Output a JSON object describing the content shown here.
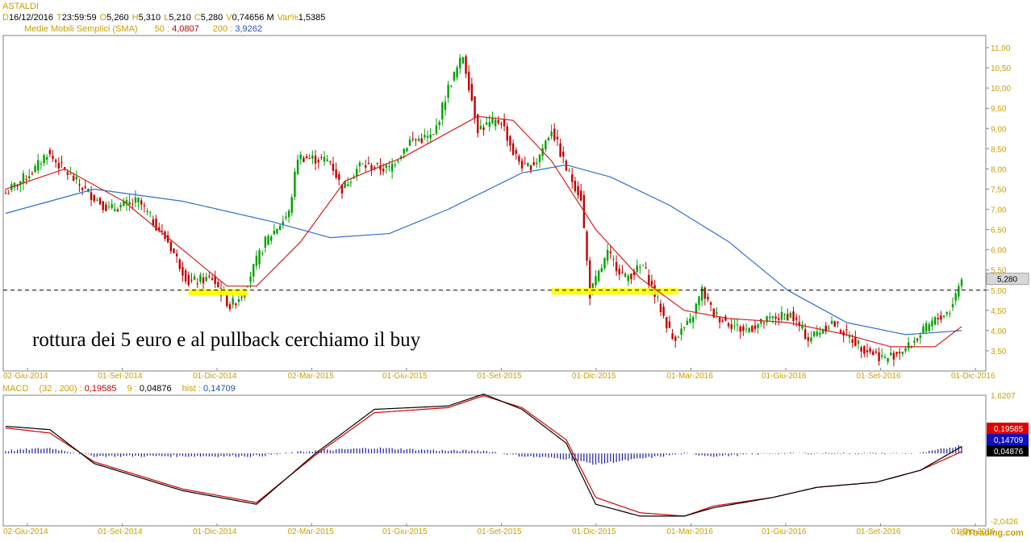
{
  "header": {
    "ticker": "ASTALDI",
    "line1": [
      {
        "k": "D",
        "v": "16/12/2016"
      },
      {
        "k": "T",
        "v": "23:59:59"
      },
      {
        "k": "O",
        "v": "5,260"
      },
      {
        "k": "H",
        "v": "5,310"
      },
      {
        "k": "L",
        "v": "5,210"
      },
      {
        "k": "C",
        "v": "5,280"
      },
      {
        "k": "V",
        "v": "0,74656 M"
      },
      {
        "k": "Var%",
        "v": "1,5385"
      }
    ],
    "sma_label": "Medie Mobili Semplici (SMA)",
    "sma50_key": "50 :",
    "sma50_value": "4,0807",
    "sma200_key": "200 :",
    "sma200_value": "3,9262"
  },
  "macd_header": {
    "label": "MACD",
    "params": "(32 , 200) :",
    "macd_value": "0,19585",
    "signal_key": "9 :",
    "signal_value": "0,04876",
    "hist_key": "hist :",
    "hist_value": "0,14709"
  },
  "watermark": "©ITtrading.com",
  "colors": {
    "candle_up": "#00a000",
    "candle_down": "#c00000",
    "sma50": "#d42020",
    "sma200": "#3070c8",
    "macd_line": "#000000",
    "signal_line": "#d00000",
    "hist_bar": "#1a1aa0",
    "axis_text": "#c8a000",
    "support_band": "#ffff00"
  },
  "chart_data": [
    {
      "type": "candlestick",
      "title": "ASTALDI",
      "ylim": [
        3.0,
        11.3
      ],
      "ytick_labels": [
        "11,00",
        "10,50",
        "10,00",
        "9,50",
        "9,00",
        "8,50",
        "8,00",
        "7,50",
        "7,00",
        "6,50",
        "6,00",
        "5,50",
        "5,00",
        "4,50",
        "4,00",
        "3,50"
      ],
      "ytick_values": [
        11.0,
        10.5,
        10.0,
        9.5,
        9.0,
        8.5,
        8.0,
        7.5,
        7.0,
        6.5,
        6.0,
        5.5,
        5.0,
        4.5,
        4.0,
        3.5
      ],
      "xtick_labels": [
        "02-Giu-2014",
        "01-Set-2014",
        "01-Dic-2014",
        "02-Mar-2015",
        "01-Giu-2015",
        "01-Set-2015",
        "01-Dic-2015",
        "01-Mar-2016",
        "01-Giu-2016",
        "01-Set-2016",
        "01-Dic-2016"
      ],
      "price_path": [
        [
          0,
          7.4
        ],
        [
          10,
          8.0
        ],
        [
          14,
          8.4
        ],
        [
          25,
          7.6
        ],
        [
          35,
          7.0
        ],
        [
          45,
          7.2
        ],
        [
          55,
          6.2
        ],
        [
          62,
          5.2
        ],
        [
          70,
          5.3
        ],
        [
          76,
          4.6
        ],
        [
          80,
          4.9
        ],
        [
          88,
          6.2
        ],
        [
          96,
          6.9
        ],
        [
          99,
          8.3
        ],
        [
          110,
          8.2
        ],
        [
          114,
          7.5
        ],
        [
          120,
          8.1
        ],
        [
          130,
          8.0
        ],
        [
          137,
          8.7
        ],
        [
          145,
          8.8
        ],
        [
          150,
          10.0
        ],
        [
          155,
          10.8
        ],
        [
          160,
          9.0
        ],
        [
          168,
          9.2
        ],
        [
          172,
          8.4
        ],
        [
          176,
          8.0
        ],
        [
          180,
          8.2
        ],
        [
          185,
          9.0
        ],
        [
          190,
          8.0
        ],
        [
          195,
          7.3
        ],
        [
          198,
          4.9
        ],
        [
          204,
          5.9
        ],
        [
          210,
          5.3
        ],
        [
          216,
          5.6
        ],
        [
          220,
          4.9
        ],
        [
          226,
          3.8
        ],
        [
          232,
          4.2
        ],
        [
          236,
          5.0
        ],
        [
          240,
          4.4
        ],
        [
          250,
          4.0
        ],
        [
          260,
          4.3
        ],
        [
          266,
          4.4
        ],
        [
          272,
          3.8
        ],
        [
          280,
          4.2
        ],
        [
          290,
          3.6
        ],
        [
          298,
          3.3
        ],
        [
          306,
          3.6
        ],
        [
          314,
          4.2
        ],
        [
          320,
          4.5
        ],
        [
          324,
          5.3
        ]
      ],
      "sma50": [
        [
          0,
          7.5
        ],
        [
          20,
          8.0
        ],
        [
          40,
          7.2
        ],
        [
          60,
          6.0
        ],
        [
          75,
          5.1
        ],
        [
          85,
          5.1
        ],
        [
          100,
          6.2
        ],
        [
          115,
          7.7
        ],
        [
          135,
          8.3
        ],
        [
          150,
          8.9
        ],
        [
          160,
          9.3
        ],
        [
          172,
          9.2
        ],
        [
          185,
          8.2
        ],
        [
          200,
          6.5
        ],
        [
          215,
          5.3
        ],
        [
          230,
          4.5
        ],
        [
          245,
          4.3
        ],
        [
          265,
          4.2
        ],
        [
          285,
          3.9
        ],
        [
          300,
          3.6
        ],
        [
          315,
          3.6
        ],
        [
          324,
          4.1
        ]
      ],
      "sma200": [
        [
          0,
          6.9
        ],
        [
          30,
          7.5
        ],
        [
          60,
          7.2
        ],
        [
          90,
          6.7
        ],
        [
          110,
          6.3
        ],
        [
          130,
          6.4
        ],
        [
          150,
          7.0
        ],
        [
          175,
          7.9
        ],
        [
          190,
          8.1
        ],
        [
          205,
          7.8
        ],
        [
          225,
          7.1
        ],
        [
          245,
          6.2
        ],
        [
          265,
          5.0
        ],
        [
          285,
          4.2
        ],
        [
          305,
          3.9
        ],
        [
          324,
          4.0
        ]
      ],
      "dashed_level": 5.0,
      "last_price_label": "5,280",
      "last_price": 5.28,
      "support_zones": [
        {
          "x_from": 62,
          "x_to": 82,
          "level": 4.95
        },
        {
          "x_from": 185,
          "x_to": 228,
          "level": 4.97
        }
      ],
      "annotation": "rottura dei 5 euro e al pullback cerchiamo il buy"
    },
    {
      "type": "line",
      "title": "MACD",
      "ylim": [
        -2.0426,
        1.6207
      ],
      "ytick_labels": [
        "1,6207",
        "-2,0426"
      ],
      "xtick_labels": [
        "02-Giu-2014",
        "01-Set-2014",
        "01-Dic-2014",
        "02-Mar-2015",
        "01-Giu-2015",
        "01-Set-2015",
        "01-Dic-2015",
        "01-Mar-2016",
        "01-Giu-2016",
        "01-Set-2016",
        "01-Dic-2016"
      ],
      "series": [
        {
          "name": "MACD",
          "values": [
            [
              0,
              0.8
            ],
            [
              15,
              0.7
            ],
            [
              30,
              -0.3
            ],
            [
              60,
              -1.1
            ],
            [
              85,
              -1.5
            ],
            [
              105,
              0.0
            ],
            [
              125,
              1.3
            ],
            [
              150,
              1.4
            ],
            [
              162,
              1.75
            ],
            [
              175,
              1.3
            ],
            [
              190,
              0.3
            ],
            [
              200,
              -1.5
            ],
            [
              215,
              -1.85
            ],
            [
              230,
              -1.85
            ],
            [
              240,
              -1.6
            ],
            [
              260,
              -1.3
            ],
            [
              275,
              -1.0
            ],
            [
              295,
              -0.85
            ],
            [
              310,
              -0.5
            ],
            [
              324,
              0.2
            ]
          ]
        },
        {
          "name": "Signal",
          "values": [
            [
              0,
              0.75
            ],
            [
              15,
              0.6
            ],
            [
              30,
              -0.25
            ],
            [
              60,
              -1.05
            ],
            [
              85,
              -1.45
            ],
            [
              105,
              -0.05
            ],
            [
              125,
              1.2
            ],
            [
              150,
              1.35
            ],
            [
              162,
              1.7
            ],
            [
              175,
              1.35
            ],
            [
              190,
              0.4
            ],
            [
              200,
              -1.3
            ],
            [
              215,
              -1.75
            ],
            [
              230,
              -1.85
            ],
            [
              240,
              -1.55
            ],
            [
              260,
              -1.3
            ],
            [
              275,
              -1.0
            ],
            [
              295,
              -0.85
            ],
            [
              310,
              -0.5
            ],
            [
              324,
              0.05
            ]
          ]
        }
      ],
      "value_labels": [
        "0,19585",
        "0,14709",
        "0,04876"
      ]
    }
  ]
}
